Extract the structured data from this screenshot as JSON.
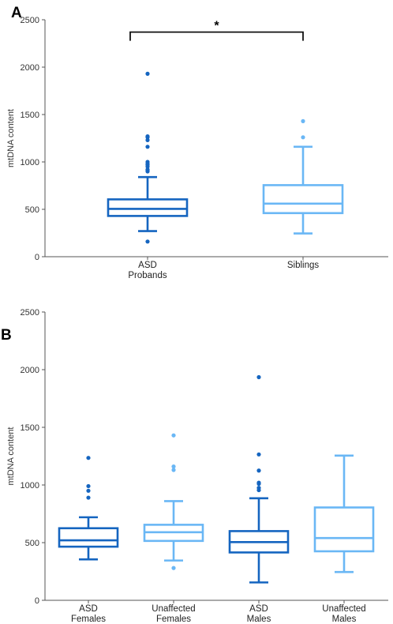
{
  "chart_data": [
    {
      "type": "boxplot",
      "panel_label": "A",
      "ylabel": "mtDNA content",
      "ylim": [
        0,
        2500
      ],
      "yticks": [
        "0",
        "500",
        "1000",
        "1500",
        "2000",
        "2500"
      ],
      "categories": [
        {
          "lines": [
            "ASD",
            "Probands"
          ]
        },
        {
          "lines": [
            "Siblings"
          ]
        }
      ],
      "boxes": [
        {
          "color": "#1565c0",
          "whisker_low": 270,
          "q1": 430,
          "median": 505,
          "q3": 605,
          "whisker_high": 840,
          "outliers": [
            160,
            900,
            910,
            920,
            950,
            970,
            980,
            1000,
            1160,
            1230,
            1260,
            1270,
            1930
          ]
        },
        {
          "color": "#6ab7f5",
          "whisker_low": 245,
          "q1": 460,
          "median": 560,
          "q3": 755,
          "whisker_high": 1160,
          "outliers": [
            1260,
            1430
          ]
        }
      ],
      "significance": {
        "from": 0,
        "to": 1,
        "label": "*",
        "y": 2370
      }
    },
    {
      "type": "boxplot",
      "panel_label": "B",
      "ylabel": "mtDNA content",
      "ylim": [
        0,
        2500
      ],
      "yticks": [
        "0",
        "500",
        "1000",
        "1500",
        "2000",
        "2500"
      ],
      "categories": [
        {
          "lines": [
            "ASD",
            "Females"
          ]
        },
        {
          "lines": [
            "Unaffected",
            "Females"
          ]
        },
        {
          "lines": [
            "ASD",
            "Males"
          ]
        },
        {
          "lines": [
            "Unaffected",
            "Males"
          ]
        }
      ],
      "boxes": [
        {
          "color": "#1565c0",
          "whisker_low": 355,
          "q1": 465,
          "median": 520,
          "q3": 625,
          "whisker_high": 720,
          "outliers": [
            890,
            950,
            990,
            1235
          ]
        },
        {
          "color": "#6ab7f5",
          "whisker_low": 345,
          "q1": 515,
          "median": 590,
          "q3": 655,
          "whisker_high": 860,
          "outliers": [
            280,
            1130,
            1160,
            1430
          ]
        },
        {
          "color": "#1565c0",
          "whisker_low": 155,
          "q1": 415,
          "median": 505,
          "q3": 600,
          "whisker_high": 885,
          "outliers": [
            955,
            975,
            1010,
            1020,
            1125,
            1265,
            1935
          ]
        },
        {
          "color": "#6ab7f5",
          "whisker_low": 245,
          "q1": 425,
          "median": 540,
          "q3": 805,
          "whisker_high": 1255,
          "outliers": []
        }
      ]
    }
  ]
}
